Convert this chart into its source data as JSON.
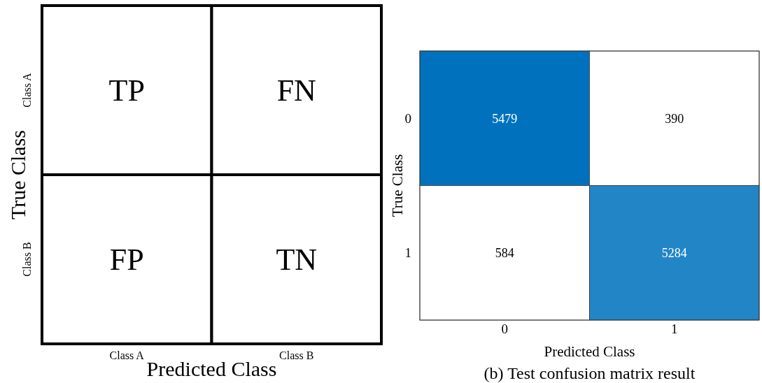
{
  "chart_data": [
    {
      "type": "heatmap",
      "xlabel": "Predicted Class",
      "ylabel": "True Class",
      "categories": [
        "Class A",
        "Class B"
      ],
      "y_categories": [
        "Class A",
        "Class B"
      ],
      "cells": [
        [
          null,
          null
        ],
        [
          null,
          null
        ]
      ],
      "cell_labels": [
        [
          "TP",
          "FN"
        ],
        [
          "FP",
          "TN"
        ]
      ]
    },
    {
      "type": "heatmap",
      "xlabel": "Predicted Class",
      "ylabel": "True Class",
      "categories": [
        "0",
        "1"
      ],
      "y_categories": [
        "0",
        "1"
      ],
      "cells": [
        [
          5479,
          390
        ],
        [
          584,
          5284
        ]
      ],
      "data_labels": true,
      "color": "#0072bd",
      "annotations": [
        "(b) Test confusion matrix result"
      ]
    }
  ]
}
